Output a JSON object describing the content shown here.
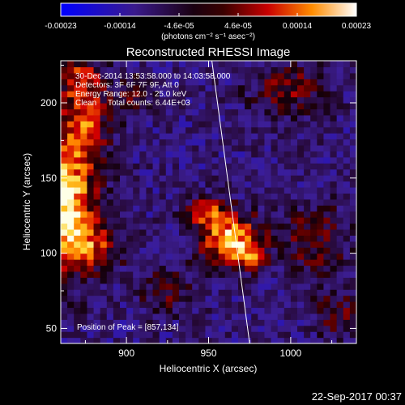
{
  "colorbar": {
    "ticks": [
      "-0.00023",
      "-0.00014",
      "-4.6e-05",
      "4.6e-05",
      "0.00014",
      "0.00023"
    ],
    "unit_label": "(photons cm⁻² s⁻¹ asec⁻²)",
    "range": [
      -0.00023,
      0.00023
    ]
  },
  "chart_data": {
    "type": "heatmap",
    "title": "Reconstructed RHESSI Image",
    "xlabel": "Heliocentric X (arcsec)",
    "ylabel": "Heliocentric Y (arcsec)",
    "xlim": [
      860,
      1040
    ],
    "ylim": [
      40,
      228
    ],
    "x_ticks": [
      900,
      950,
      1000
    ],
    "y_ticks": [
      50,
      100,
      150,
      200
    ],
    "annotations": [
      "30-Dec-2014 13:53:58.000 to 14:03:58.000",
      "Detectors: 3F 6F 7F 9F, Att 0",
      "Energy Range: 12.0 - 25.0 keV",
      "Clean     Total counts: 6.44E+03"
    ],
    "peak_label": "Position of Peak = [857,134]",
    "peak": [
      857,
      134
    ],
    "limb_line": [
      [
        952,
        228
      ],
      [
        975,
        40
      ]
    ],
    "sources": [
      {
        "x": 862,
        "y": 132,
        "sx": 13,
        "sy": 30,
        "amp": 1.0
      },
      {
        "x": 875,
        "y": 188,
        "sx": 10,
        "sy": 18,
        "amp": 0.55
      },
      {
        "x": 870,
        "y": 218,
        "sx": 10,
        "sy": 10,
        "amp": 0.45
      },
      {
        "x": 882,
        "y": 105,
        "sx": 12,
        "sy": 10,
        "amp": 0.45
      },
      {
        "x": 963,
        "y": 110,
        "sx": 13,
        "sy": 12,
        "amp": 0.85
      },
      {
        "x": 948,
        "y": 128,
        "sx": 8,
        "sy": 7,
        "amp": 0.5
      },
      {
        "x": 975,
        "y": 98,
        "sx": 7,
        "sy": 6,
        "amp": 0.45
      },
      {
        "x": 1015,
        "y": 110,
        "sx": 14,
        "sy": 16,
        "amp": 0.35
      },
      {
        "x": 1028,
        "y": 60,
        "sx": 10,
        "sy": 12,
        "amp": 0.3
      },
      {
        "x": 1000,
        "y": 210,
        "sx": 16,
        "sy": 12,
        "amp": 0.35
      },
      {
        "x": 925,
        "y": 75,
        "sx": 12,
        "sy": 10,
        "amp": 0.3
      },
      {
        "x": 905,
        "y": 205,
        "sx": 9,
        "sy": 9,
        "amp": 0.3
      }
    ]
  },
  "timestamp": "22-Sep-2017 00:37"
}
